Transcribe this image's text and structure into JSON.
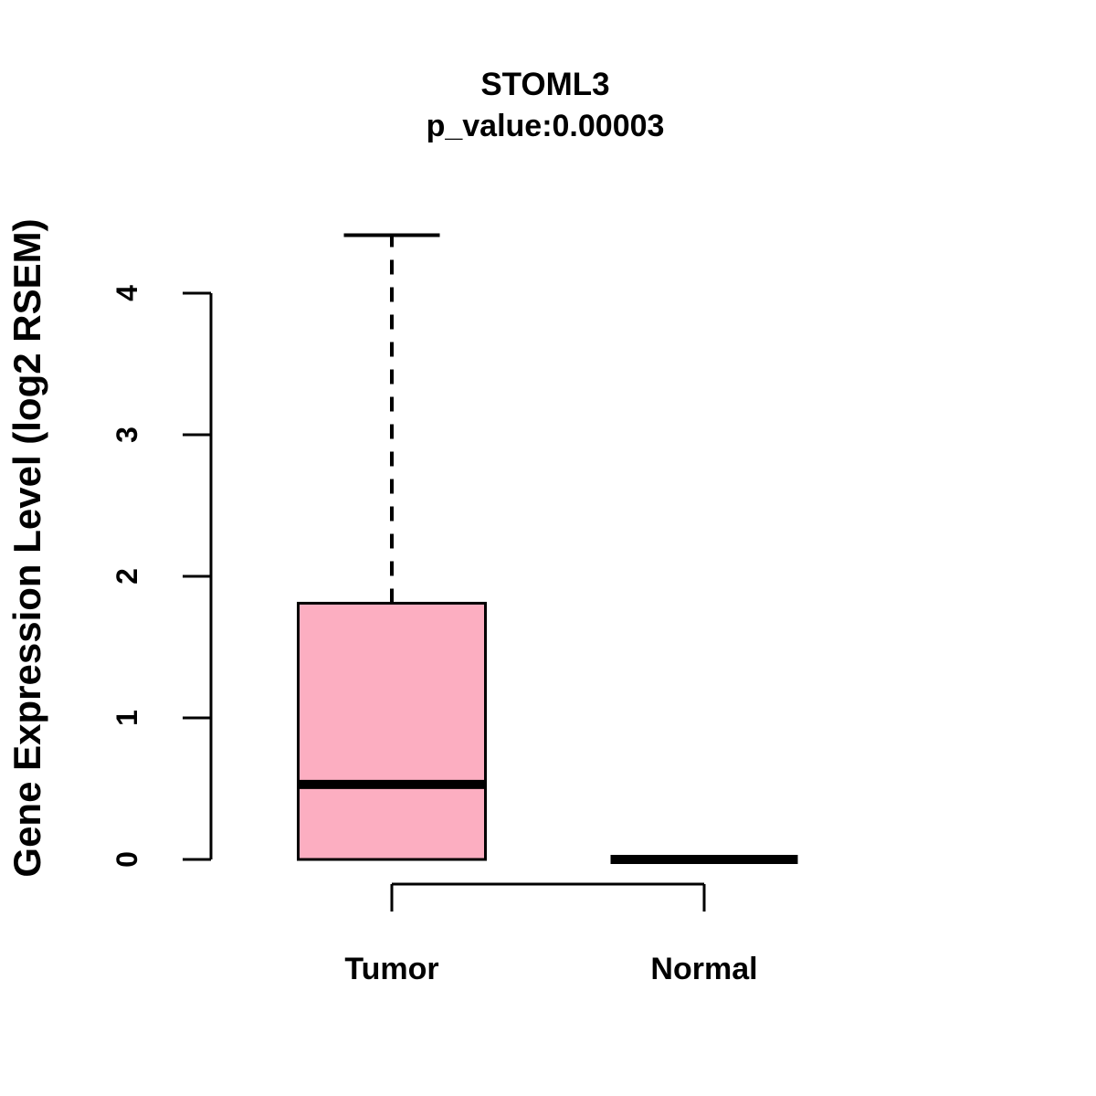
{
  "title": "STOML3",
  "subtitle": "p_value:0.00003",
  "ylabel": "Gene Expression Level (log2 RSEM)",
  "colors": {
    "line": "#000000",
    "background": "#ffffff",
    "tumor_fill": "#FCAEC1"
  },
  "chart_data": {
    "type": "boxplot",
    "title": "STOML3",
    "subtitle": "p_value:0.00003",
    "ylabel": "Gene Expression Level (log2 RSEM)",
    "xlabel": "",
    "categories": [
      "Tumor",
      "Normal"
    ],
    "yticks": [
      "0",
      "1",
      "2",
      "3",
      "4"
    ],
    "ylim": [
      0,
      4.41
    ],
    "grid": false,
    "legend": "none",
    "series": [
      {
        "name": "Tumor",
        "whisker_low": 0,
        "q1": 0,
        "median": 0.53,
        "q3": 1.81,
        "whisker_high": 4.41,
        "fill": "#FCAEC1"
      },
      {
        "name": "Normal",
        "whisker_low": 0,
        "q1": 0,
        "median": 0,
        "q3": 0,
        "whisker_high": 0,
        "fill": "#FCAEC1"
      }
    ]
  }
}
